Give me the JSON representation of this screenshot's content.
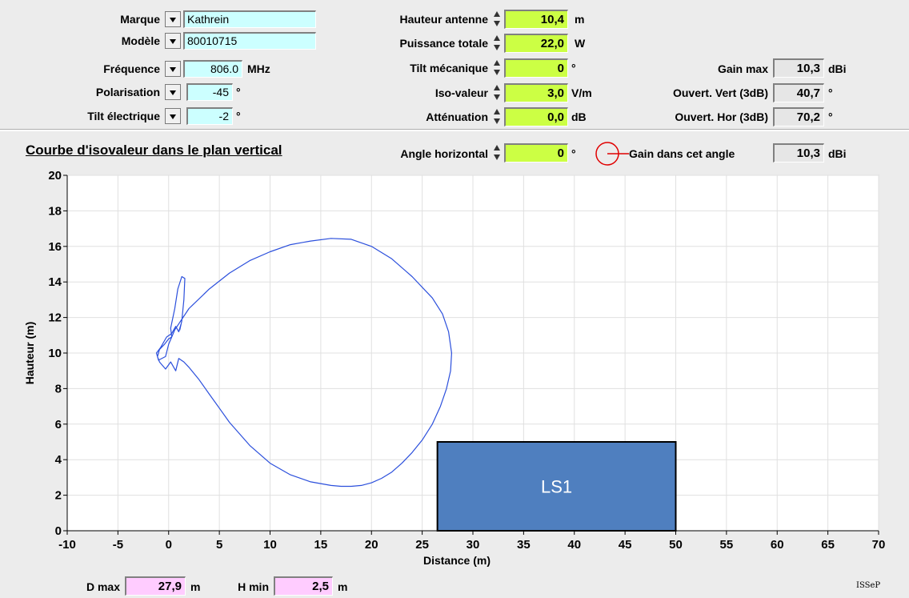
{
  "params": {
    "marque": {
      "label": "Marque",
      "value": "Kathrein"
    },
    "modele": {
      "label": "Modèle",
      "value": "80010715"
    },
    "frequence": {
      "label": "Fréquence",
      "value": "806.0",
      "unit": "MHz"
    },
    "polarisation": {
      "label": "Polarisation",
      "value": "-45",
      "unit": "°"
    },
    "tilt_electrique": {
      "label": "Tilt électrique",
      "value": "-2",
      "unit": "°"
    },
    "hauteur_antenne": {
      "label": "Hauteur antenne",
      "value": "10,4",
      "unit": "m"
    },
    "puissance_totale": {
      "label": "Puissance totale",
      "value": "22,0",
      "unit": "W"
    },
    "tilt_mecanique": {
      "label": "Tilt mécanique",
      "value": "0",
      "unit": "°"
    },
    "iso_valeur": {
      "label": "Iso-valeur",
      "value": "3,0",
      "unit": "V/m"
    },
    "attenuation": {
      "label": "Atténuation",
      "value": "0,0",
      "unit": "dB"
    },
    "gain_max": {
      "label": "Gain max",
      "value": "10,3",
      "unit": "dBi"
    },
    "ouvert_vert": {
      "label": "Ouvert. Vert (3dB)",
      "value": "40,7",
      "unit": "°"
    },
    "ouvert_hor": {
      "label": "Ouvert. Hor (3dB)",
      "value": "70,2",
      "unit": "°"
    }
  },
  "chart_header": {
    "title": "Courbe d'isovaleur dans le plan vertical",
    "angle_horizontal": {
      "label": "Angle horizontal",
      "value": "0",
      "unit": "°"
    },
    "gain_angle": {
      "label": "Gain dans cet angle",
      "value": "10,3",
      "unit": "dBi"
    }
  },
  "footer": {
    "dmax": {
      "label": "D max",
      "value": "27,9",
      "unit": "m"
    },
    "hmin": {
      "label": "H min",
      "value": "2,5",
      "unit": "m"
    },
    "brand": "ISSeP"
  },
  "colors": {
    "curve": "#2b4fdc",
    "building": "#4f7fbf",
    "gauge": "#e00000"
  },
  "chart_data": {
    "type": "line",
    "title": "",
    "xlabel": "Distance (m)",
    "ylabel": "Hauteur (m)",
    "xlim": [
      -10,
      70
    ],
    "ylim": [
      0,
      20
    ],
    "xticks": [
      -10,
      -5,
      0,
      5,
      10,
      15,
      20,
      25,
      30,
      35,
      40,
      45,
      50,
      55,
      60,
      65,
      70
    ],
    "yticks": [
      0,
      2,
      4,
      6,
      8,
      10,
      12,
      14,
      16,
      18,
      20
    ],
    "grid": true,
    "series": [
      {
        "x": [
          0.6,
          2,
          4,
          6,
          8,
          10,
          12,
          14,
          16,
          18,
          20,
          22,
          24,
          26,
          27,
          27.6,
          27.9,
          27.8,
          27.4,
          26.8,
          26,
          25,
          24,
          23,
          22,
          21,
          20,
          19,
          18,
          17,
          16,
          14,
          12,
          10,
          8,
          6,
          5,
          4,
          3,
          2,
          1.5,
          1,
          0.7,
          0.2,
          -0.3,
          -0.9,
          -1.1,
          -0.9,
          -0.4,
          0,
          0.3,
          0.2,
          0.6,
          0.9,
          1.3,
          1.6,
          1.5,
          1.3,
          1.1,
          1.2,
          1.0,
          0.7,
          0.3,
          -0.2,
          -0.8,
          -1.2,
          -1.0,
          -0.3,
          0.0,
          0.6
        ],
        "y": [
          11.3,
          12.5,
          13.6,
          14.5,
          15.2,
          15.7,
          16.1,
          16.3,
          16.45,
          16.4,
          16.0,
          15.3,
          14.3,
          13.1,
          12.2,
          11.2,
          10.0,
          9.0,
          8.0,
          7.0,
          6.0,
          5.1,
          4.4,
          3.8,
          3.3,
          2.95,
          2.7,
          2.55,
          2.5,
          2.5,
          2.55,
          2.75,
          3.15,
          3.8,
          4.8,
          6.1,
          6.9,
          7.7,
          8.5,
          9.2,
          9.5,
          9.7,
          9.0,
          9.5,
          9.1,
          9.5,
          9.8,
          10.2,
          10.5,
          10.8,
          10.9,
          11.4,
          12.5,
          13.6,
          14.3,
          14.2,
          13.0,
          11.8,
          11.3,
          11.6,
          11.2,
          11.5,
          11.1,
          10.9,
          10.3,
          10.0,
          9.6,
          9.8,
          10.5,
          11.3
        ]
      }
    ],
    "rectangles": [
      {
        "label": "LS1",
        "x0": 26.5,
        "x1": 50,
        "y0": 0,
        "y1": 5
      }
    ]
  }
}
